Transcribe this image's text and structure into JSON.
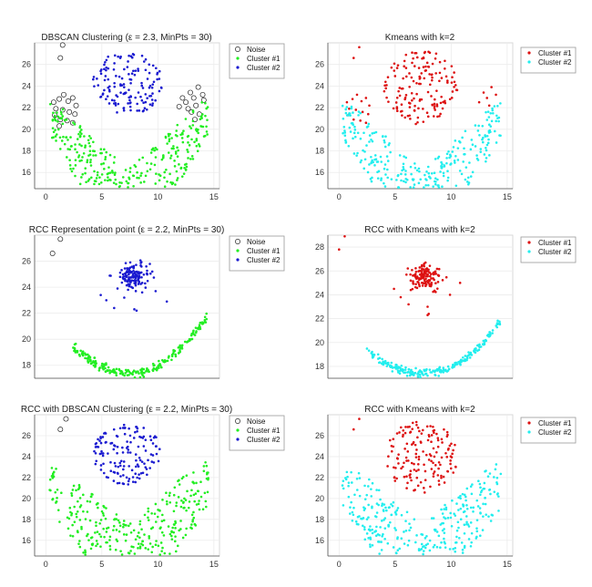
{
  "colors": {
    "noise": "#222222",
    "green": "#22ee22",
    "blue": "#1a1ad0",
    "red": "#dd1111",
    "cyan": "#22eeee"
  },
  "chart_data": [
    {
      "id": "p1",
      "type": "scatter",
      "kind": "dbscan",
      "title": "DBSCAN Clustering (ε = 2.3, MinPts = 30)",
      "xlim": [
        -1,
        15.5
      ],
      "ylim": [
        14.5,
        28
      ],
      "xticks": [
        0,
        5,
        10,
        15
      ],
      "yticks": [
        16,
        18,
        20,
        22,
        24,
        26
      ],
      "legend": [
        "Noise",
        "Cluster #1",
        "Cluster #2"
      ],
      "series": [
        {
          "name": "Noise",
          "marker": "circle",
          "color": "noise",
          "points": [
            [
              1.5,
              27.8
            ],
            [
              1.3,
              26.6
            ],
            [
              0.7,
              22.5
            ],
            [
              1.2,
              22.8
            ],
            [
              1.6,
              23.2
            ],
            [
              2.0,
              22.6
            ],
            [
              2.4,
              22.9
            ],
            [
              2.7,
              22.2
            ],
            [
              0.9,
              21.9
            ],
            [
              1.5,
              21.8
            ],
            [
              2.1,
              21.6
            ],
            [
              2.6,
              21.4
            ],
            [
              0.8,
              21.3
            ],
            [
              1.3,
              20.9
            ],
            [
              1.9,
              20.8
            ],
            [
              2.4,
              20.6
            ],
            [
              1.2,
              20.3
            ],
            [
              11.9,
              22.1
            ],
            [
              12.5,
              22.5
            ],
            [
              13.2,
              22.9
            ],
            [
              14.0,
              23.2
            ],
            [
              13.6,
              23.9
            ],
            [
              12.9,
              23.4
            ],
            [
              12.2,
              22.9
            ],
            [
              12.7,
              21.9
            ],
            [
              13.4,
              22.2
            ],
            [
              14.1,
              22.7
            ],
            [
              13.0,
              21.6
            ],
            [
              13.7,
              21.4
            ],
            [
              13.3,
              20.9
            ]
          ]
        },
        {
          "name": "Cluster #1",
          "marker": "dot",
          "color": "green",
          "gen": {
            "shape": "fan",
            "n": 300,
            "seed": 11
          }
        },
        {
          "name": "Cluster #2",
          "marker": "dot",
          "color": "blue",
          "gen": {
            "shape": "ellipse",
            "n": 140,
            "seed": 12,
            "cx": 7.3,
            "cy": 24.3,
            "rx": 3.1,
            "ry": 3.0
          }
        }
      ]
    },
    {
      "id": "p2",
      "type": "scatter",
      "kind": "kmeans",
      "title": "Kmeans with k=2",
      "xlim": [
        -1,
        15.5
      ],
      "ylim": [
        14.5,
        28
      ],
      "xticks": [
        0,
        5,
        10,
        15
      ],
      "yticks": [
        16,
        18,
        20,
        22,
        24,
        26
      ],
      "legend": [
        "Cluster #1",
        "Cluster #2"
      ],
      "series": [
        {
          "name": "Cluster #1",
          "marker": "dot",
          "color": "red",
          "points": [
            [
              1.8,
              27.6
            ],
            [
              1.3,
              26.6
            ],
            [
              0.7,
              22.5
            ],
            [
              1.2,
              22.8
            ],
            [
              1.6,
              23.2
            ],
            [
              2.0,
              22.6
            ],
            [
              2.4,
              22.9
            ],
            [
              2.7,
              22.2
            ],
            [
              0.9,
              21.9
            ],
            [
              1.5,
              21.8
            ],
            [
              2.1,
              21.6
            ],
            [
              2.6,
              21.4
            ],
            [
              0.8,
              21.3
            ],
            [
              1.3,
              20.9
            ],
            [
              1.9,
              20.8
            ],
            [
              2.4,
              20.6
            ],
            [
              12.5,
              22.5
            ],
            [
              13.2,
              22.9
            ],
            [
              14.0,
              23.2
            ],
            [
              13.6,
              23.9
            ],
            [
              12.9,
              23.4
            ],
            [
              13.4,
              22.2
            ]
          ],
          "gen": {
            "shape": "ellipse",
            "n": 150,
            "seed": 21,
            "cx": 7.3,
            "cy": 23.9,
            "rx": 3.3,
            "ry": 3.5
          }
        },
        {
          "name": "Cluster #2",
          "marker": "dot",
          "color": "cyan",
          "gen": {
            "shape": "fan",
            "n": 270,
            "seed": 22,
            "ymax": 21.3
          }
        }
      ]
    },
    {
      "id": "p3",
      "type": "scatter",
      "kind": "rcc",
      "title": "RCC Representation point (ε = 2.2, MinPts = 30)",
      "xlim": [
        -1,
        15.5
      ],
      "ylim": [
        17,
        28
      ],
      "xticks": [],
      "yticks": [
        18,
        20,
        22,
        24,
        26
      ],
      "legend": [
        "Noise",
        "Cluster #1",
        "Cluster #2"
      ],
      "series": [
        {
          "name": "Noise",
          "marker": "circle",
          "color": "noise",
          "points": [
            [
              1.3,
              27.7
            ],
            [
              0.6,
              26.6
            ]
          ]
        },
        {
          "name": "Cluster #1",
          "marker": "dot",
          "color": "green",
          "gen": {
            "shape": "vcurve",
            "n": 220,
            "seed": 31
          }
        },
        {
          "name": "Cluster #2",
          "marker": "dot",
          "color": "blue",
          "gen": {
            "shape": "blob",
            "n": 130,
            "seed": 32,
            "cx": 7.7,
            "cy": 24.9,
            "rx": 1.6,
            "ry": 1.1
          },
          "points": [
            [
              4.9,
              23.4
            ],
            [
              5.4,
              23.0
            ],
            [
              6.1,
              22.4
            ],
            [
              7.9,
              22.3
            ],
            [
              8.1,
              22.2
            ],
            [
              9.8,
              23.7
            ],
            [
              10.8,
              22.9
            ],
            [
              7.0,
              23.2
            ],
            [
              8.6,
              23.6
            ],
            [
              6.4,
              23.9
            ]
          ]
        }
      ]
    },
    {
      "id": "p4",
      "type": "scatter",
      "kind": "rcc-kmeans",
      "title": "RCC with Kmeans with k=2",
      "xlim": [
        -1,
        15.5
      ],
      "ylim": [
        17,
        29
      ],
      "xticks": [],
      "yticks": [
        18,
        20,
        22,
        24,
        26,
        28
      ],
      "legend": [
        "Cluster #1",
        "Cluster #2"
      ],
      "series": [
        {
          "name": "Cluster #1",
          "marker": "dot",
          "color": "red",
          "points": [
            [
              0.5,
              28.9
            ],
            [
              0.0,
              27.8
            ],
            [
              4.9,
              24.5
            ],
            [
              5.5,
              23.8
            ],
            [
              6.2,
              23.2
            ],
            [
              7.9,
              23.0
            ],
            [
              8.0,
              22.4
            ],
            [
              7.9,
              22.3
            ],
            [
              10.8,
              25.0
            ],
            [
              9.9,
              24.0
            ],
            [
              6.4,
              24.4
            ]
          ],
          "gen": {
            "shape": "blob",
            "n": 130,
            "seed": 41,
            "cx": 7.7,
            "cy": 25.5,
            "rx": 1.6,
            "ry": 1.1
          }
        },
        {
          "name": "Cluster #2",
          "marker": "dot",
          "color": "cyan",
          "gen": {
            "shape": "vcurve",
            "n": 220,
            "seed": 42
          }
        }
      ]
    },
    {
      "id": "p5",
      "type": "scatter",
      "kind": "rcc-dbscan",
      "title": "RCC with DBSCAN Clustering (ε = 2.2, MinPts = 30)",
      "xlim": [
        -1,
        15.5
      ],
      "ylim": [
        14.5,
        28
      ],
      "xticks": [
        0,
        5,
        10,
        15
      ],
      "yticks": [
        16,
        18,
        20,
        22,
        24,
        26
      ],
      "legend": [
        "Noise",
        "Cluster #1",
        "Cluster #2"
      ],
      "series": [
        {
          "name": "Noise",
          "marker": "circle",
          "color": "noise",
          "points": [
            [
              1.8,
              27.6
            ],
            [
              1.3,
              26.6
            ]
          ]
        },
        {
          "name": "Cluster #1",
          "marker": "dot",
          "color": "green",
          "gen": {
            "shape": "fan",
            "n": 300,
            "seed": 51,
            "arms": true
          }
        },
        {
          "name": "Cluster #2",
          "marker": "dot",
          "color": "blue",
          "gen": {
            "shape": "ellipse",
            "n": 140,
            "seed": 52,
            "cx": 7.3,
            "cy": 24.3,
            "rx": 3.1,
            "ry": 3.0
          }
        }
      ]
    },
    {
      "id": "p6",
      "type": "scatter",
      "kind": "rcc-kmeans-2",
      "title": "RCC with Kmeans with k=2",
      "xlim": [
        -1,
        15.5
      ],
      "ylim": [
        14.5,
        28
      ],
      "xticks": [
        0,
        5,
        10,
        15
      ],
      "yticks": [
        16,
        18,
        20,
        22,
        24,
        26
      ],
      "legend": [
        "Cluster #1",
        "Cluster #2"
      ],
      "series": [
        {
          "name": "Cluster #1",
          "marker": "dot",
          "color": "red",
          "points": [
            [
              1.8,
              27.6
            ],
            [
              1.3,
              26.6
            ]
          ],
          "gen": {
            "shape": "ellipse",
            "n": 150,
            "seed": 61,
            "cx": 7.3,
            "cy": 23.9,
            "rx": 3.3,
            "ry": 3.5
          }
        },
        {
          "name": "Cluster #2",
          "marker": "dot",
          "color": "cyan",
          "gen": {
            "shape": "fan",
            "n": 300,
            "seed": 62,
            "arms": true,
            "ymax": 21.3
          }
        }
      ]
    }
  ]
}
